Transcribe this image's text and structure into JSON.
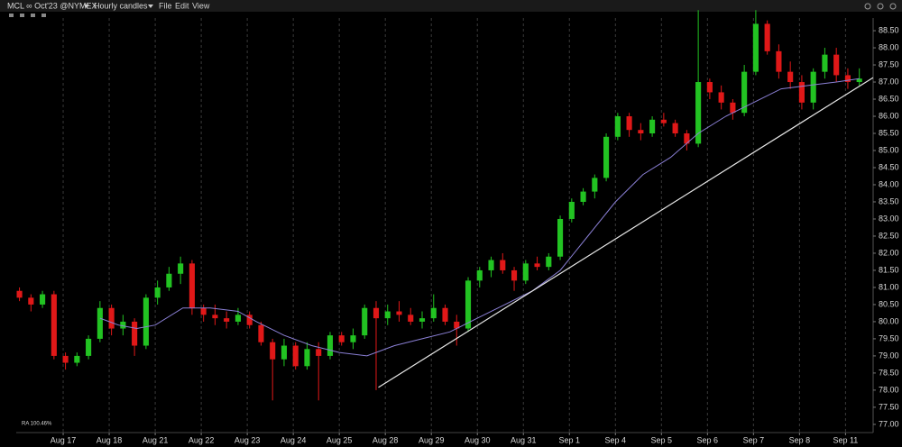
{
  "toolbar": {
    "symbol": "MCL ∞ Oct'23 @NYMEX",
    "interval": "Hourly candles",
    "menus": [
      "File",
      "Edit",
      "View"
    ]
  },
  "status": "RA 100.46%",
  "chart_data": {
    "type": "candlestick",
    "up_color": "#22c322",
    "down_color": "#e01818",
    "grid": "x",
    "xlim": [
      -1.02,
      17.6
    ],
    "ylim": [
      76.76,
      88.87
    ],
    "xticks": [
      {
        "value": 0,
        "label": "Aug 17"
      },
      {
        "value": 1,
        "label": "Aug 18"
      },
      {
        "value": 2,
        "label": "Aug 21"
      },
      {
        "value": 3,
        "label": "Aug 22"
      },
      {
        "value": 4,
        "label": "Aug 23"
      },
      {
        "value": 5,
        "label": "Aug 24"
      },
      {
        "value": 6,
        "label": "Aug 25"
      },
      {
        "value": 7,
        "label": "Aug 28"
      },
      {
        "value": 8,
        "label": "Aug 29"
      },
      {
        "value": 9,
        "label": "Aug 30"
      },
      {
        "value": 10,
        "label": "Aug 31"
      },
      {
        "value": 11,
        "label": "Sep 1"
      },
      {
        "value": 12,
        "label": "Sep 4"
      },
      {
        "value": 13,
        "label": "Sep 5"
      },
      {
        "value": 14,
        "label": "Sep 6"
      },
      {
        "value": 15,
        "label": "Sep 7"
      },
      {
        "value": 16,
        "label": "Sep 8"
      },
      {
        "value": 17,
        "label": "Sep 11"
      }
    ],
    "yticks": [
      {
        "value": 77,
        "label": "77.00"
      },
      {
        "value": 77.5,
        "label": "77.50"
      },
      {
        "value": 78,
        "label": "78.00"
      },
      {
        "value": 78.5,
        "label": "78.50"
      },
      {
        "value": 79,
        "label": "79.00"
      },
      {
        "value": 79.5,
        "label": "79.50"
      },
      {
        "value": 80,
        "label": "80.00"
      },
      {
        "value": 80.5,
        "label": "80.50"
      },
      {
        "value": 81,
        "label": "81.00"
      },
      {
        "value": 81.5,
        "label": "81.50"
      },
      {
        "value": 82,
        "label": "82.00"
      },
      {
        "value": 82.5,
        "label": "82.50"
      },
      {
        "value": 83,
        "label": "83.00"
      },
      {
        "value": 83.5,
        "label": "83.50"
      },
      {
        "value": 84,
        "label": "84.00"
      },
      {
        "value": 84.5,
        "label": "84.50"
      },
      {
        "value": 85,
        "label": "85.00"
      },
      {
        "value": 85.5,
        "label": "85.50"
      },
      {
        "value": 86,
        "label": "86.00"
      },
      {
        "value": 86.5,
        "label": "86.50"
      },
      {
        "value": 87,
        "label": "87.00"
      },
      {
        "value": 87.5,
        "label": "87.50"
      },
      {
        "value": 88,
        "label": "88.00"
      },
      {
        "value": 88.5,
        "label": "88.50"
      }
    ],
    "x": [
      -0.95,
      -0.7,
      -0.45,
      -0.2,
      0.05,
      0.3,
      0.55,
      0.8,
      1.05,
      1.3,
      1.55,
      1.8,
      2.05,
      2.3,
      2.55,
      2.8,
      3.05,
      3.3,
      3.55,
      3.8,
      4.05,
      4.3,
      4.55,
      4.8,
      5.05,
      5.3,
      5.55,
      5.8,
      6.05,
      6.3,
      6.55,
      6.8,
      7.05,
      7.3,
      7.55,
      7.8,
      8.05,
      8.3,
      8.55,
      8.8,
      9.05,
      9.3,
      9.55,
      9.8,
      10.05,
      10.3,
      10.55,
      10.8,
      11.05,
      11.3,
      11.55,
      11.8,
      12.05,
      12.3,
      12.55,
      12.8,
      13.05,
      13.3,
      13.55,
      13.8,
      14.05,
      14.3,
      14.55,
      14.8,
      15.05,
      15.3,
      15.55,
      15.8,
      16.05,
      16.3,
      16.55,
      16.8,
      17.05,
      17.3
    ],
    "open": [
      80.9,
      80.7,
      80.5,
      80.8,
      79.0,
      78.8,
      79.0,
      79.5,
      80.4,
      79.8,
      80.0,
      79.3,
      80.7,
      81.0,
      81.4,
      81.7,
      80.4,
      80.2,
      80.1,
      80.0,
      80.2,
      79.9,
      79.4,
      78.9,
      79.3,
      78.7,
      79.2,
      79.0,
      79.6,
      79.4,
      79.6,
      80.4,
      80.1,
      80.3,
      80.2,
      80.0,
      80.1,
      80.4,
      80.0,
      79.8,
      81.2,
      81.5,
      81.8,
      81.5,
      81.2,
      81.7,
      81.6,
      81.9,
      83.0,
      83.5,
      83.8,
      84.2,
      85.4,
      86.0,
      85.6,
      85.5,
      85.9,
      85.8,
      85.5,
      85.2,
      87.0,
      86.7,
      86.4,
      86.1,
      87.3,
      88.7,
      87.9,
      87.3,
      87.0,
      86.4,
      87.3,
      87.8,
      87.2,
      87.0
    ],
    "high": [
      81.0,
      80.8,
      80.9,
      80.9,
      79.1,
      79.1,
      79.6,
      80.6,
      80.5,
      80.2,
      80.1,
      80.8,
      81.2,
      81.6,
      81.9,
      81.8,
      80.5,
      80.5,
      80.3,
      80.4,
      80.3,
      80.0,
      79.5,
      79.5,
      79.4,
      79.4,
      79.4,
      79.7,
      79.7,
      79.8,
      80.5,
      80.6,
      80.5,
      80.6,
      80.4,
      80.3,
      80.8,
      80.5,
      80.2,
      81.3,
      81.6,
      81.9,
      82.0,
      81.6,
      81.8,
      81.9,
      82.0,
      83.1,
      83.6,
      83.9,
      84.3,
      85.5,
      86.1,
      86.1,
      85.8,
      86.0,
      86.1,
      85.9,
      85.6,
      89.1,
      87.1,
      86.9,
      86.5,
      87.5,
      89.1,
      88.8,
      88.1,
      87.6,
      87.2,
      87.4,
      88.0,
      88.0,
      87.4,
      87.4
    ],
    "low": [
      80.6,
      80.3,
      80.4,
      78.9,
      78.6,
      78.7,
      78.9,
      79.4,
      79.6,
      79.6,
      79.0,
      79.2,
      80.5,
      80.9,
      81.1,
      80.2,
      80.0,
      79.9,
      79.8,
      79.9,
      79.8,
      79.3,
      77.7,
      78.7,
      78.6,
      78.6,
      77.7,
      78.9,
      79.3,
      79.2,
      79.5,
      78.0,
      79.9,
      80.0,
      79.9,
      79.8,
      80.0,
      79.9,
      79.3,
      79.7,
      81.0,
      81.3,
      81.4,
      80.9,
      81.1,
      81.5,
      81.5,
      81.8,
      82.9,
      83.4,
      83.6,
      84.1,
      85.3,
      85.4,
      85.3,
      85.4,
      85.7,
      85.4,
      85.0,
      85.1,
      86.5,
      86.2,
      85.9,
      86.0,
      87.2,
      87.8,
      87.1,
      86.8,
      86.2,
      86.2,
      87.1,
      87.0,
      86.8,
      86.9
    ],
    "close": [
      80.7,
      80.5,
      80.8,
      79.0,
      78.8,
      79.0,
      79.5,
      80.4,
      79.8,
      80.0,
      79.3,
      80.7,
      81.0,
      81.4,
      81.7,
      80.4,
      80.2,
      80.1,
      80.0,
      80.2,
      79.9,
      79.4,
      78.9,
      79.3,
      78.7,
      79.2,
      79.0,
      79.6,
      79.4,
      79.6,
      80.4,
      80.1,
      80.3,
      80.2,
      80.0,
      80.1,
      80.4,
      80.0,
      79.8,
      81.2,
      81.5,
      81.8,
      81.5,
      81.2,
      81.7,
      81.6,
      81.9,
      83.0,
      83.5,
      83.8,
      84.2,
      85.4,
      86.0,
      85.6,
      85.5,
      85.9,
      85.8,
      85.5,
      85.2,
      87.0,
      86.7,
      86.4,
      86.1,
      87.3,
      88.7,
      87.9,
      87.3,
      87.0,
      86.4,
      87.3,
      87.8,
      87.2,
      87.0,
      87.1
    ],
    "moving_average": {
      "color": "#8b80d6",
      "x": [
        0.8,
        1.2,
        1.6,
        2.0,
        2.6,
        3.2,
        3.8,
        4.2,
        4.8,
        5.4,
        6.0,
        6.6,
        7.2,
        7.8,
        8.4,
        9.0,
        9.6,
        10.2,
        10.8,
        11.4,
        12.0,
        12.6,
        13.2,
        13.8,
        14.4,
        15.0,
        15.6,
        16.2,
        16.8,
        17.3
      ],
      "y": [
        80.1,
        79.9,
        79.8,
        79.9,
        80.4,
        80.4,
        80.3,
        80.0,
        79.6,
        79.3,
        79.1,
        79.0,
        79.3,
        79.5,
        79.7,
        80.1,
        80.5,
        80.9,
        81.5,
        82.5,
        83.5,
        84.3,
        84.8,
        85.5,
        86.0,
        86.4,
        86.8,
        86.9,
        87.0,
        87.1
      ]
    },
    "trendline": {
      "color": "#e8e8e8",
      "x": [
        6.85,
        17.6
      ],
      "y": [
        78.08,
        87.13
      ]
    }
  }
}
